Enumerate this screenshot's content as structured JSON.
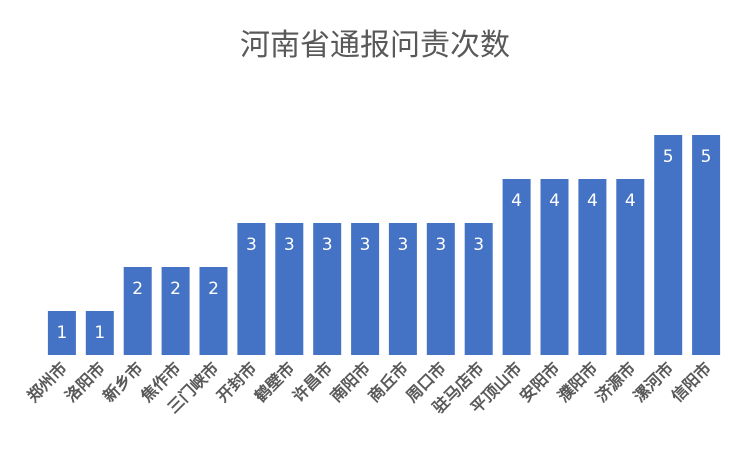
{
  "chart_data": {
    "type": "bar",
    "title": "河南省通报问责次数",
    "categories": [
      "郑州市",
      "洛阳市",
      "新乡市",
      "焦作市",
      "三门峡市",
      "开封市",
      "鹤壁市",
      "许昌市",
      "南阳市",
      "商丘市",
      "周口市",
      "驻马店市",
      "平顶山市",
      "安阳市",
      "濮阳市",
      "济源市",
      "漯河市",
      "信阳市"
    ],
    "values": [
      1,
      1,
      2,
      2,
      2,
      3,
      3,
      3,
      3,
      3,
      3,
      3,
      4,
      4,
      4,
      4,
      5,
      5
    ],
    "xlabel": "",
    "ylabel": "",
    "ylim": [
      0,
      5
    ],
    "grid": false,
    "legend": "none",
    "data_labels": true,
    "colors": {
      "bar": "#4472C4",
      "label": "#FFFFFF",
      "title": "#595959",
      "tick": "#595959"
    }
  }
}
